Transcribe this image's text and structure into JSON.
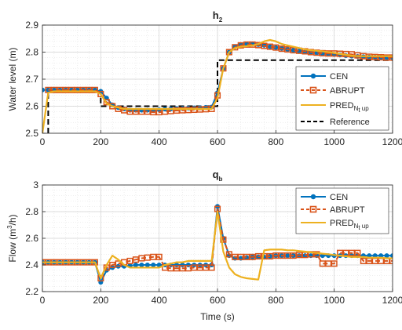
{
  "colors": {
    "cen": "#0072bd",
    "abrupt": "#d95319",
    "pred": "#edb120",
    "reference": "#000000"
  },
  "chart_data": [
    {
      "type": "line",
      "title": {
        "main": "h",
        "sub": "2"
      },
      "xlabel": "",
      "ylabel": "Water level (m)",
      "xlim": [
        0,
        1200
      ],
      "ylim": [
        2.5,
        2.9
      ],
      "xticks": [
        "0",
        "200",
        "400",
        "600",
        "800",
        "1000",
        "1200"
      ],
      "yticks": [
        "2.5",
        "2.6",
        "2.7",
        "2.8",
        "2.9"
      ],
      "grid": true,
      "legend_position": "bottom-right",
      "legend": {
        "cen": "CEN",
        "abrupt": "ABRUPT",
        "pred": "PRED",
        "pred_sub": "N",
        "pred_subsub": "t",
        "pred_sub_tail": " up",
        "reference": "Reference"
      },
      "series": [
        {
          "name": "CEN",
          "x": [
            0,
            20,
            40,
            60,
            80,
            100,
            120,
            140,
            160,
            180,
            200,
            220,
            240,
            260,
            280,
            300,
            320,
            340,
            360,
            380,
            400,
            420,
            440,
            460,
            480,
            500,
            520,
            540,
            560,
            580,
            600,
            620,
            640,
            660,
            680,
            700,
            720,
            740,
            760,
            780,
            800,
            820,
            840,
            860,
            880,
            900,
            920,
            940,
            960,
            980,
            1000,
            1020,
            1040,
            1060,
            1080,
            1100,
            1120,
            1140,
            1160,
            1180,
            1200
          ],
          "values": [
            2.66,
            2.66,
            2.66,
            2.66,
            2.66,
            2.66,
            2.66,
            2.66,
            2.66,
            2.66,
            2.655,
            2.63,
            2.605,
            2.595,
            2.59,
            2.585,
            2.585,
            2.585,
            2.585,
            2.585,
            2.587,
            2.589,
            2.59,
            2.591,
            2.592,
            2.593,
            2.594,
            2.595,
            2.596,
            2.597,
            2.65,
            2.74,
            2.8,
            2.82,
            2.828,
            2.83,
            2.83,
            2.828,
            2.825,
            2.82,
            2.817,
            2.814,
            2.81,
            2.807,
            2.804,
            2.801,
            2.799,
            2.797,
            2.795,
            2.793,
            2.791,
            2.789,
            2.787,
            2.785,
            2.784,
            2.783,
            2.782,
            2.781,
            2.78,
            2.78,
            2.78
          ]
        },
        {
          "name": "ABRUPT",
          "x": [
            20,
            40,
            60,
            80,
            100,
            120,
            140,
            160,
            180,
            200,
            220,
            240,
            260,
            280,
            300,
            320,
            340,
            360,
            380,
            400,
            420,
            440,
            460,
            480,
            500,
            520,
            540,
            560,
            580,
            600,
            620,
            640,
            660,
            680,
            700,
            720,
            740,
            760,
            780,
            800,
            820,
            840,
            860,
            880,
            900,
            920,
            940,
            960,
            980,
            1000,
            1020,
            1040,
            1060,
            1080,
            1100,
            1120,
            1140,
            1160,
            1180,
            1200
          ],
          "values": [
            2.66,
            2.66,
            2.66,
            2.66,
            2.66,
            2.66,
            2.66,
            2.66,
            2.66,
            2.645,
            2.615,
            2.6,
            2.59,
            2.585,
            2.58,
            2.58,
            2.58,
            2.58,
            2.578,
            2.578,
            2.58,
            2.582,
            2.584,
            2.585,
            2.586,
            2.587,
            2.588,
            2.589,
            2.59,
            2.64,
            2.74,
            2.8,
            2.818,
            2.825,
            2.828,
            2.828,
            2.826,
            2.823,
            2.82,
            2.817,
            2.813,
            2.81,
            2.807,
            2.805,
            2.803,
            2.8,
            2.798,
            2.796,
            2.795,
            2.795,
            2.794,
            2.793,
            2.792,
            2.788,
            2.785,
            2.783,
            2.782,
            2.781,
            2.78,
            2.78
          ]
        },
        {
          "name": "PRED",
          "x": [
            0,
            20,
            40,
            60,
            80,
            100,
            120,
            140,
            160,
            180,
            200,
            220,
            240,
            260,
            280,
            300,
            320,
            340,
            360,
            380,
            400,
            420,
            440,
            460,
            480,
            500,
            520,
            540,
            560,
            580,
            600,
            620,
            640,
            660,
            680,
            700,
            720,
            740,
            760,
            780,
            800,
            820,
            840,
            860,
            880,
            900,
            920,
            940,
            960,
            980,
            1000,
            1020,
            1040,
            1060,
            1080,
            1100,
            1120,
            1140,
            1160,
            1180,
            1200
          ],
          "values": [
            2.5,
            2.65,
            2.655,
            2.655,
            2.655,
            2.655,
            2.655,
            2.655,
            2.655,
            2.655,
            2.645,
            2.61,
            2.6,
            2.595,
            2.59,
            2.59,
            2.59,
            2.59,
            2.59,
            2.59,
            2.59,
            2.59,
            2.59,
            2.59,
            2.59,
            2.59,
            2.59,
            2.59,
            2.59,
            2.59,
            2.63,
            2.74,
            2.8,
            2.815,
            2.82,
            2.822,
            2.825,
            2.83,
            2.84,
            2.845,
            2.84,
            2.83,
            2.825,
            2.82,
            2.815,
            2.81,
            2.807,
            2.805,
            2.803,
            2.8,
            2.797,
            2.793,
            2.79,
            2.787,
            2.785,
            2.785,
            2.785,
            2.785,
            2.785,
            2.785,
            2.785
          ]
        },
        {
          "name": "Reference",
          "x": [
            20,
            20,
            200,
            200,
            600,
            600,
            1200
          ],
          "values": [
            2.5,
            2.66,
            2.66,
            2.6,
            2.6,
            2.77,
            2.77
          ]
        }
      ]
    },
    {
      "type": "line",
      "title": {
        "main": "q",
        "sub": "b"
      },
      "xlabel": "Time (s)",
      "ylabel": {
        "pre": "Flow (m",
        "sup": "3",
        "post": "/h)"
      },
      "xlim": [
        0,
        1200
      ],
      "ylim": [
        2.2,
        3.0
      ],
      "xticks": [
        "0",
        "200",
        "400",
        "600",
        "800",
        "1000",
        "1200"
      ],
      "yticks": [
        "2.2",
        "2.4",
        "2.6",
        "2.8",
        "3"
      ],
      "grid": true,
      "legend_position": "top-right",
      "legend": {
        "cen": "CEN",
        "abrupt": "ABRUPT",
        "pred": "PRED",
        "pred_sub": "N",
        "pred_subsub": "t",
        "pred_sub_tail": " up"
      },
      "series": [
        {
          "name": "CEN",
          "x": [
            0,
            20,
            40,
            60,
            80,
            100,
            120,
            140,
            160,
            180,
            200,
            220,
            240,
            260,
            280,
            300,
            320,
            340,
            360,
            380,
            400,
            420,
            440,
            460,
            480,
            500,
            520,
            540,
            560,
            580,
            600,
            620,
            640,
            660,
            680,
            700,
            720,
            740,
            760,
            780,
            800,
            820,
            840,
            860,
            880,
            900,
            920,
            940,
            960,
            980,
            1000,
            1020,
            1040,
            1060,
            1080,
            1100,
            1120,
            1140,
            1160,
            1180,
            1200
          ],
          "values": [
            2.42,
            2.42,
            2.42,
            2.42,
            2.42,
            2.42,
            2.42,
            2.42,
            2.42,
            2.42,
            2.27,
            2.36,
            2.38,
            2.39,
            2.39,
            2.395,
            2.4,
            2.4,
            2.4,
            2.4,
            2.4,
            2.4,
            2.4,
            2.4,
            2.4,
            2.4,
            2.4,
            2.4,
            2.4,
            2.4,
            2.84,
            2.6,
            2.47,
            2.45,
            2.45,
            2.455,
            2.46,
            2.46,
            2.46,
            2.465,
            2.47,
            2.47,
            2.47,
            2.47,
            2.47,
            2.47,
            2.47,
            2.47,
            2.47,
            2.47,
            2.47,
            2.47,
            2.47,
            2.47,
            2.47,
            2.47,
            2.47,
            2.47,
            2.47,
            2.47,
            2.47
          ]
        },
        {
          "name": "ABRUPT",
          "x": [
            0,
            20,
            40,
            60,
            80,
            100,
            120,
            140,
            160,
            180,
            200,
            220,
            240,
            260,
            280,
            300,
            320,
            340,
            360,
            380,
            400,
            420,
            440,
            460,
            480,
            500,
            520,
            540,
            560,
            580,
            600,
            620,
            640,
            660,
            680,
            700,
            720,
            740,
            760,
            780,
            800,
            820,
            840,
            860,
            880,
            900,
            920,
            940,
            960,
            980,
            1000,
            1020,
            1040,
            1060,
            1080,
            1100,
            1120,
            1140,
            1160,
            1180,
            1200
          ],
          "values": [
            2.42,
            2.42,
            2.42,
            2.42,
            2.42,
            2.42,
            2.42,
            2.42,
            2.42,
            2.42,
            2.3,
            2.38,
            2.4,
            2.41,
            2.42,
            2.43,
            2.44,
            2.45,
            2.455,
            2.46,
            2.46,
            2.38,
            2.375,
            2.375,
            2.375,
            2.375,
            2.38,
            2.38,
            2.38,
            2.38,
            2.82,
            2.59,
            2.48,
            2.46,
            2.46,
            2.46,
            2.46,
            2.465,
            2.465,
            2.465,
            2.47,
            2.47,
            2.47,
            2.47,
            2.475,
            2.475,
            2.48,
            2.48,
            2.41,
            2.41,
            2.41,
            2.49,
            2.49,
            2.49,
            2.49,
            2.43,
            2.43,
            2.43,
            2.43,
            2.43,
            2.43
          ]
        },
        {
          "name": "PRED",
          "x": [
            0,
            20,
            40,
            60,
            80,
            100,
            120,
            140,
            160,
            180,
            200,
            220,
            240,
            260,
            280,
            300,
            320,
            340,
            360,
            380,
            400,
            420,
            440,
            460,
            480,
            500,
            520,
            540,
            560,
            580,
            600,
            620,
            640,
            660,
            680,
            700,
            720,
            740,
            760,
            780,
            800,
            820,
            840,
            860,
            880,
            900,
            920,
            940,
            960,
            980,
            1000,
            1020,
            1040,
            1060,
            1080,
            1100,
            1120,
            1140,
            1160,
            1180,
            1200
          ],
          "values": [
            2.42,
            2.42,
            2.42,
            2.42,
            2.42,
            2.42,
            2.42,
            2.42,
            2.42,
            2.42,
            2.3,
            2.4,
            2.47,
            2.44,
            2.4,
            2.38,
            2.38,
            2.38,
            2.38,
            2.38,
            2.38,
            2.4,
            2.41,
            2.42,
            2.42,
            2.43,
            2.43,
            2.43,
            2.43,
            2.43,
            2.8,
            2.5,
            2.38,
            2.33,
            2.31,
            2.3,
            2.295,
            2.29,
            2.51,
            2.515,
            2.515,
            2.515,
            2.51,
            2.51,
            2.505,
            2.5,
            2.495,
            2.49,
            2.485,
            2.48,
            2.475,
            2.47,
            2.465,
            2.46,
            2.46,
            2.46,
            2.455,
            2.455,
            2.455,
            2.45,
            2.45
          ]
        }
      ]
    }
  ]
}
